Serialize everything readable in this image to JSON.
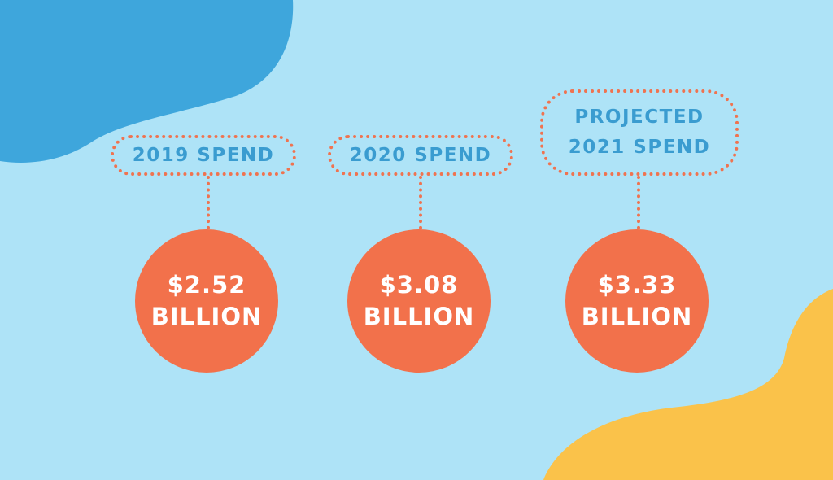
{
  "colors": {
    "background": "#aee3f7",
    "blob_blue": "#3ea6dc",
    "blob_yellow": "#fac24a",
    "accent": "#f2714b",
    "label_text": "#3a9cd0"
  },
  "items": [
    {
      "label_lines": [
        "2019 SPEND"
      ],
      "value": "$2.52",
      "unit": "BILLION"
    },
    {
      "label_lines": [
        "2020 SPEND"
      ],
      "value": "$3.08",
      "unit": "BILLION"
    },
    {
      "label_lines": [
        "PROJECTED",
        "2021 SPEND"
      ],
      "value": "$3.33",
      "unit": "BILLION"
    }
  ]
}
